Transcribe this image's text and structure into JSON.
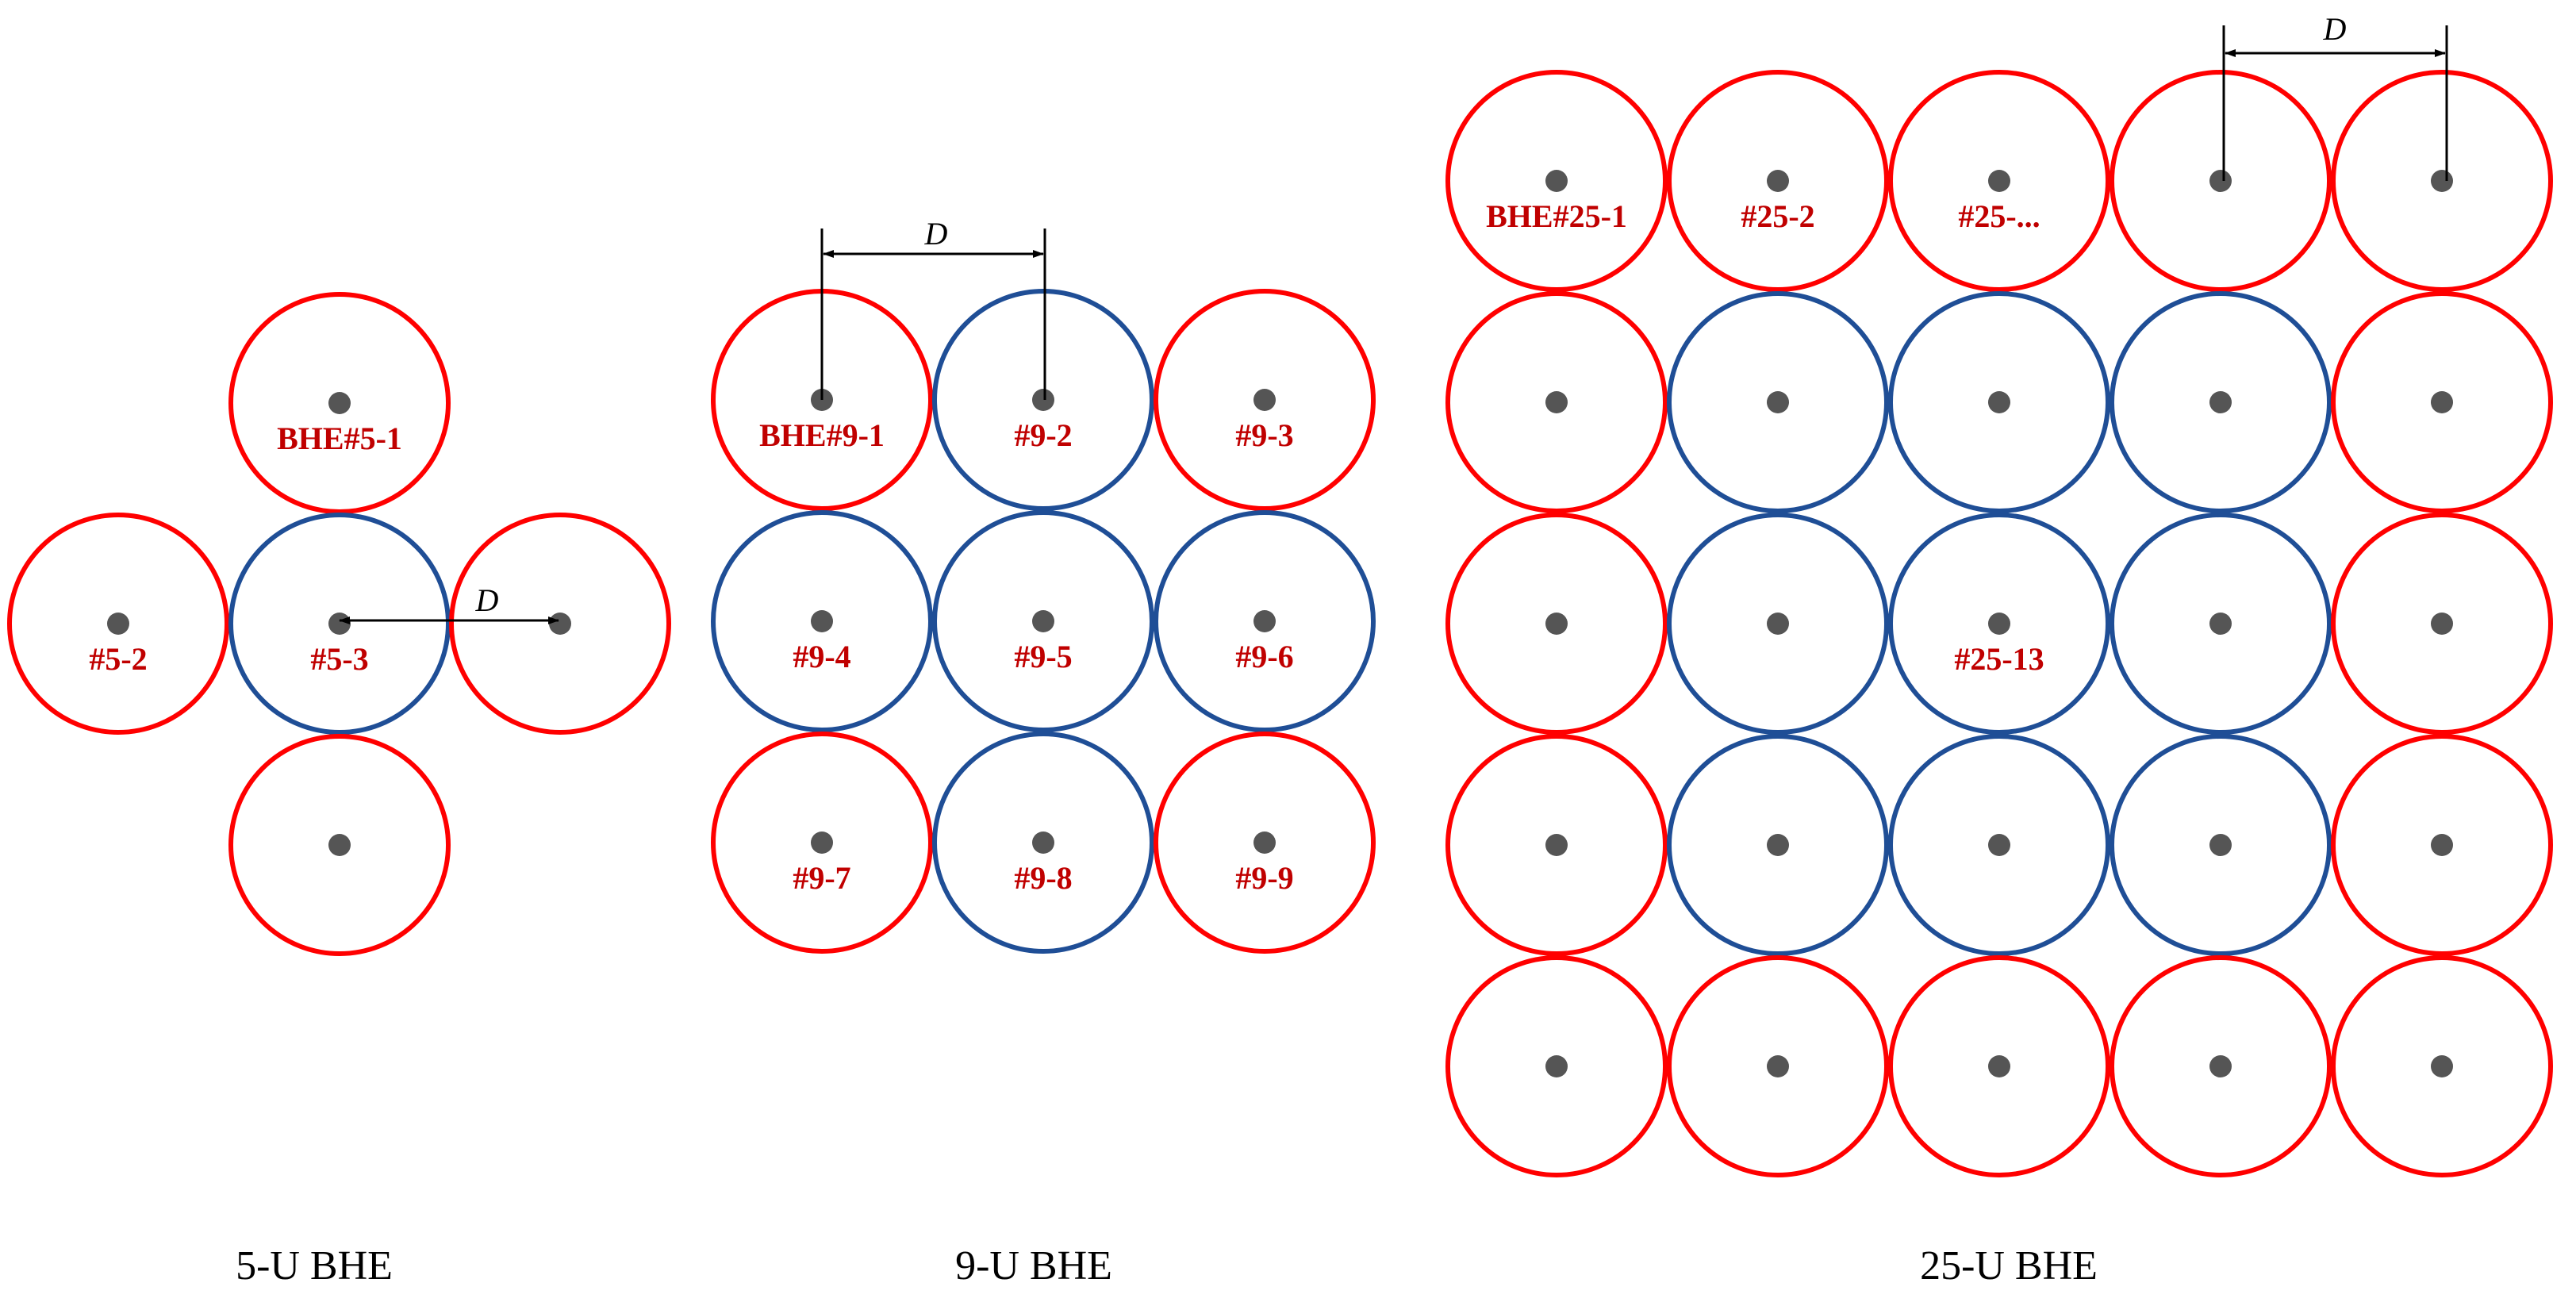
{
  "colors": {
    "boundary_circle": "#ff0000",
    "interior_circle": "#1f4e96",
    "borehole_dot": "#555555",
    "label": "#c00000",
    "caption": "#000000",
    "dimension": "#000000"
  },
  "layouts": [
    {
      "caption": "5-U BHE",
      "dimension_label": "D",
      "boreholes": [
        {
          "label": "BHE#5-1",
          "type": "boundary"
        },
        {
          "label": "#5-2",
          "type": "boundary"
        },
        {
          "label": "#5-3",
          "type": "interior"
        },
        {
          "label": "",
          "type": "boundary"
        },
        {
          "label": "",
          "type": "boundary"
        }
      ]
    },
    {
      "caption": "9-U BHE",
      "dimension_label": "D",
      "boreholes": [
        {
          "label": "BHE#9-1",
          "type": "boundary"
        },
        {
          "label": "#9-2",
          "type": "interior"
        },
        {
          "label": "#9-3",
          "type": "boundary"
        },
        {
          "label": "#9-4",
          "type": "interior"
        },
        {
          "label": "#9-5",
          "type": "interior"
        },
        {
          "label": "#9-6",
          "type": "interior"
        },
        {
          "label": "#9-7",
          "type": "boundary"
        },
        {
          "label": "#9-8",
          "type": "interior"
        },
        {
          "label": "#9-9",
          "type": "boundary"
        }
      ]
    },
    {
      "caption": "25-U BHE",
      "dimension_label": "D",
      "boreholes": [
        {
          "label": "BHE#25-1",
          "type": "boundary"
        },
        {
          "label": "#25-2",
          "type": "boundary"
        },
        {
          "label": "#25-...",
          "type": "boundary"
        },
        {
          "label": "",
          "type": "boundary"
        },
        {
          "label": "",
          "type": "boundary"
        },
        {
          "label": "",
          "type": "boundary"
        },
        {
          "label": "",
          "type": "interior"
        },
        {
          "label": "",
          "type": "interior"
        },
        {
          "label": "",
          "type": "interior"
        },
        {
          "label": "",
          "type": "boundary"
        },
        {
          "label": "",
          "type": "boundary"
        },
        {
          "label": "",
          "type": "interior"
        },
        {
          "label": "#25-13",
          "type": "interior"
        },
        {
          "label": "",
          "type": "interior"
        },
        {
          "label": "",
          "type": "boundary"
        },
        {
          "label": "",
          "type": "boundary"
        },
        {
          "label": "",
          "type": "interior"
        },
        {
          "label": "",
          "type": "interior"
        },
        {
          "label": "",
          "type": "interior"
        },
        {
          "label": "",
          "type": "boundary"
        },
        {
          "label": "",
          "type": "boundary"
        },
        {
          "label": "",
          "type": "boundary"
        },
        {
          "label": "",
          "type": "boundary"
        },
        {
          "label": "",
          "type": "boundary"
        },
        {
          "label": "",
          "type": "boundary"
        }
      ]
    }
  ]
}
